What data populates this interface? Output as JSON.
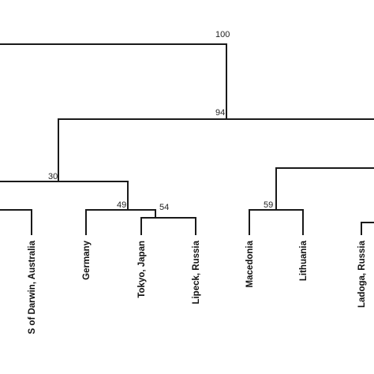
{
  "tree": {
    "type": "dendrogram",
    "leaves": [
      {
        "id": "darwin",
        "label": "S of Darwin, Australia"
      },
      {
        "id": "germany",
        "label": "Germany"
      },
      {
        "id": "tokyo",
        "label": "Tokyo, Japan"
      },
      {
        "id": "lipeck",
        "label": "Lipeck, Russia"
      },
      {
        "id": "macedonia",
        "label": "Macedonia"
      },
      {
        "id": "lithuania",
        "label": "Lithuania"
      },
      {
        "id": "ladoga",
        "label": "Ladoga, Russia"
      }
    ],
    "nodes": [
      {
        "id": "n100",
        "support": "100"
      },
      {
        "id": "n94",
        "support": "94"
      },
      {
        "id": "n30",
        "support": "30"
      },
      {
        "id": "n49",
        "support": "49"
      },
      {
        "id": "n54",
        "support": "54"
      },
      {
        "id": "n59",
        "support": "59"
      }
    ]
  }
}
